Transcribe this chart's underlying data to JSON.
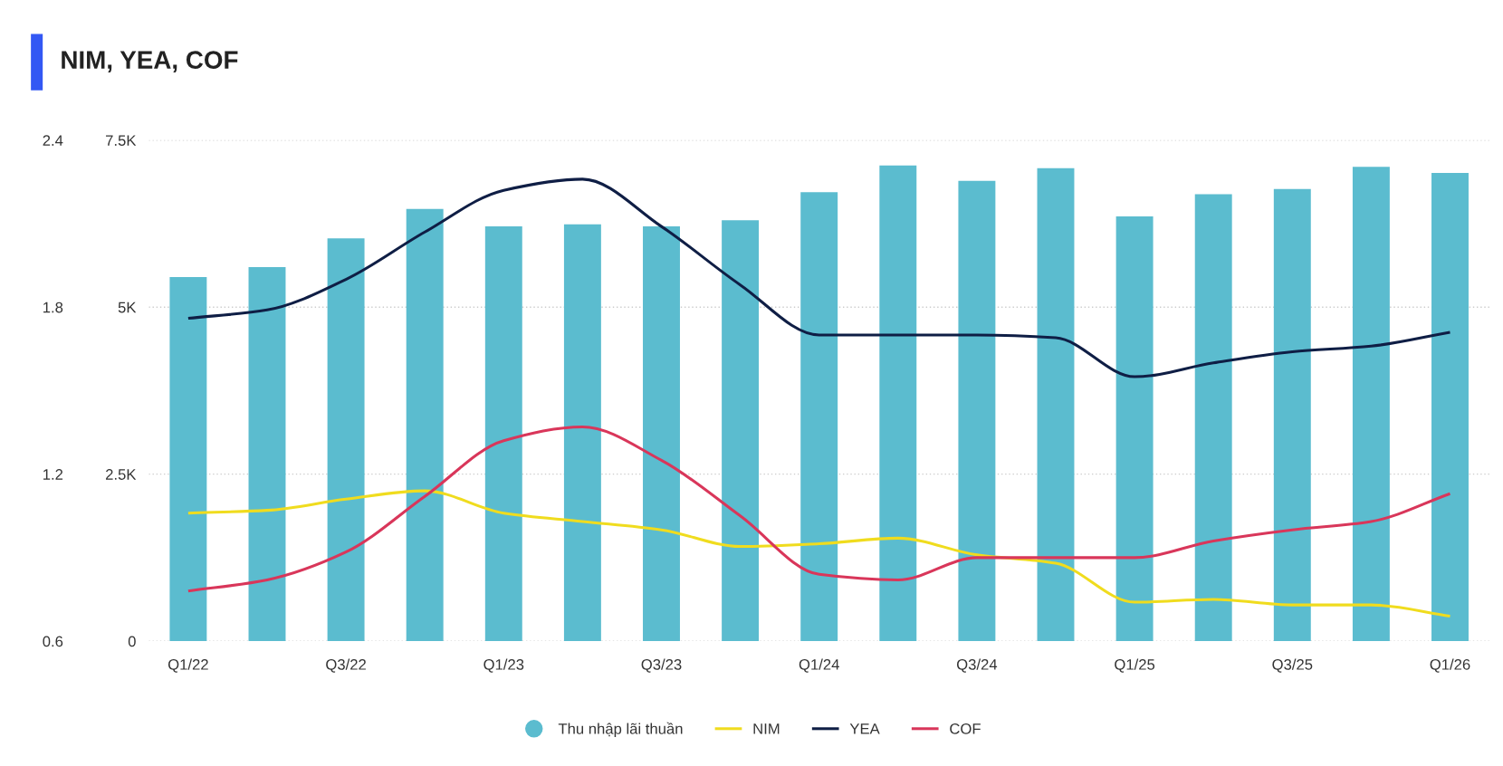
{
  "chart_data": {
    "type": "bar",
    "title": "NIM, YEA, COF",
    "categories": [
      "Q1/22",
      null,
      "Q3/22",
      null,
      "Q1/23",
      null,
      "Q3/23",
      null,
      "Q1/24",
      null,
      "Q3/24",
      null,
      "Q1/25",
      null,
      "Q3/25",
      null,
      "Q1/26"
    ],
    "series": [
      {
        "name": "Thu nhập lãi thuần",
        "color": "#5bbccf",
        "values": [
          5450,
          5600,
          6030,
          6470,
          6210,
          6240,
          6210,
          6300,
          6720,
          7120,
          6890,
          7080,
          6360,
          6690,
          6770,
          7100,
          7010
        ]
      },
      {
        "name": "NIM",
        "type": "line",
        "axis": "y2",
        "color": "#f0dc1e",
        "values": [
          1.06,
          1.07,
          1.11,
          1.14,
          1.06,
          1.03,
          1.0,
          0.94,
          0.95,
          0.97,
          0.91,
          0.88,
          0.74,
          0.75,
          0.73,
          0.73,
          0.69
        ]
      },
      {
        "name": "YEA",
        "type": "line",
        "axis": "y2",
        "color": "#0f1e45",
        "values": [
          1.76,
          1.79,
          1.9,
          2.07,
          2.22,
          2.26,
          2.09,
          1.88,
          1.7,
          1.7,
          1.7,
          1.69,
          1.55,
          1.6,
          1.64,
          1.66,
          1.71
        ]
      },
      {
        "name": "COF",
        "type": "line",
        "axis": "y2",
        "color": "#d9365a",
        "values": [
          0.78,
          0.82,
          0.92,
          1.12,
          1.32,
          1.37,
          1.25,
          1.05,
          0.84,
          0.82,
          0.9,
          0.9,
          0.9,
          0.96,
          1.0,
          1.03,
          1.13
        ]
      }
    ],
    "ylim": [
      0,
      7500
    ],
    "yticks": [
      0,
      {
        "value": 2500,
        "label": "2.5K"
      },
      {
        "value": 5000,
        "label": "5K"
      },
      {
        "value": 7500,
        "label": "7.5K"
      }
    ],
    "y2lim": [
      0.6,
      2.4
    ],
    "y2ticks": [
      0.6,
      1.2,
      1.8,
      2.4
    ],
    "grid": "y",
    "legend": "bottom",
    "marker": "none",
    "line_style": "solid"
  }
}
